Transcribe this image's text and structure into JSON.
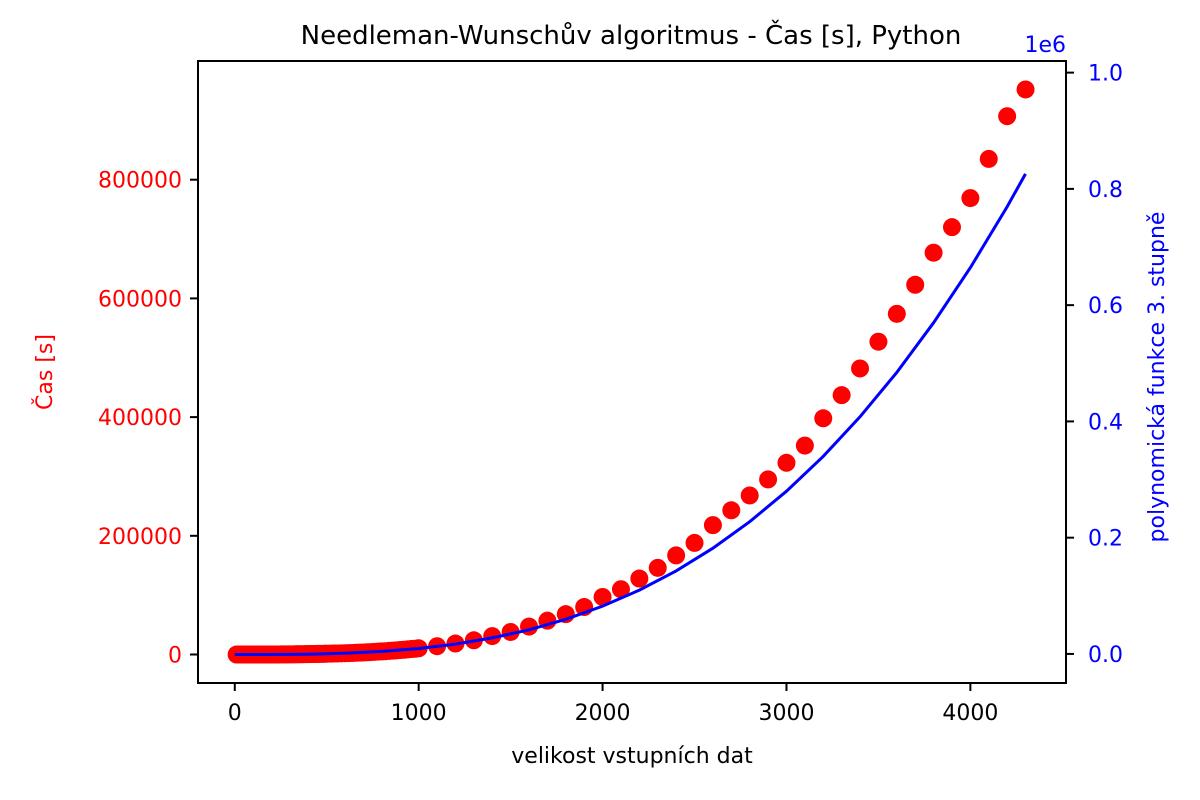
{
  "chart_data": {
    "type": "scatter",
    "title": "Needleman-Wunschův algoritmus - Čas [s], Python",
    "xlabel": "velikost vstupních dat",
    "ylabel_left": "Čas [s]",
    "ylabel_right": "polynomická funkce 3. stupně",
    "right_axis_offset_text": "1e6",
    "xlim": [
      -200,
      4520
    ],
    "ylim_left": [
      -48000,
      1000000
    ],
    "ylim_right": [
      -0.05,
      1.02
    ],
    "x_ticks": [
      0,
      1000,
      2000,
      3000,
      4000
    ],
    "y_left_ticks": [
      0,
      200000,
      400000,
      600000,
      800000
    ],
    "y_right_ticks": [
      "0.0",
      "0.2",
      "0.4",
      "0.6",
      "0.8",
      "1.0"
    ],
    "colors": {
      "measured": "#ff0000",
      "fit": "#0000ff",
      "axes": "#000000"
    },
    "grid": false,
    "series": [
      {
        "name": "",
        "role": "measured",
        "axis": "left",
        "x": [
          10,
          20,
          30,
          40,
          50,
          60,
          70,
          80,
          90,
          100,
          110,
          120,
          130,
          140,
          150,
          160,
          170,
          180,
          190,
          200,
          210,
          220,
          230,
          240,
          250,
          260,
          270,
          280,
          290,
          300,
          310,
          320,
          330,
          340,
          350,
          360,
          370,
          380,
          390,
          400,
          410,
          420,
          430,
          440,
          450,
          460,
          470,
          480,
          490,
          500,
          520,
          540,
          560,
          580,
          600,
          620,
          640,
          660,
          680,
          700,
          720,
          740,
          760,
          780,
          800,
          820,
          840,
          860,
          880,
          900,
          920,
          940,
          960,
          980,
          1000,
          1100,
          1200,
          1300,
          1400,
          1500,
          1600,
          1700,
          1800,
          1900,
          2000,
          2100,
          2200,
          2300,
          2400,
          2500,
          2600,
          2700,
          2800,
          2900,
          3000,
          3100,
          3200,
          3300,
          3400,
          3500,
          3600,
          3700,
          3800,
          3900,
          4000,
          4100,
          4200,
          4300
        ],
        "y": [
          0,
          0,
          0,
          0,
          0,
          0,
          0,
          0,
          0,
          0,
          0,
          0,
          0,
          0,
          0,
          0,
          0,
          0,
          0,
          0,
          0,
          100,
          100,
          100,
          200,
          200,
          200,
          200,
          300,
          300,
          300,
          300,
          400,
          400,
          500,
          500,
          500,
          600,
          600,
          700,
          700,
          800,
          800,
          900,
          1000,
          1000,
          1100,
          1100,
          1200,
          1300,
          1400,
          1600,
          1800,
          2000,
          2200,
          2400,
          2600,
          2900,
          3100,
          3400,
          3800,
          4100,
          4500,
          4900,
          5200,
          5600,
          6100,
          6500,
          7000,
          7500,
          8000,
          8600,
          9200,
          9700,
          10500,
          14000,
          18500,
          24000,
          31000,
          38000,
          47000,
          57000,
          68000,
          80000,
          97000,
          110000,
          128000,
          146000,
          167000,
          188000,
          218000,
          243000,
          268000,
          295000,
          323000,
          352000,
          398000,
          437000,
          482000,
          527000,
          574000,
          623000,
          677000,
          720000,
          769000,
          835000,
          907000,
          952000
        ]
      },
      {
        "name": "",
        "role": "fit",
        "axis": "left",
        "x": [
          0,
          200,
          400,
          600,
          800,
          1000,
          1200,
          1400,
          1600,
          1800,
          2000,
          2200,
          2400,
          2600,
          2800,
          3000,
          3200,
          3400,
          3600,
          3800,
          4000,
          4200,
          4300
        ],
        "y": [
          0,
          100,
          600,
          2200,
          5200,
          10200,
          17600,
          28000,
          41700,
          59400,
          81500,
          108500,
          140800,
          179100,
          223700,
          275100,
          333900,
          400500,
          475400,
          559000,
          651900,
          754600,
          809700
        ]
      }
    ]
  }
}
